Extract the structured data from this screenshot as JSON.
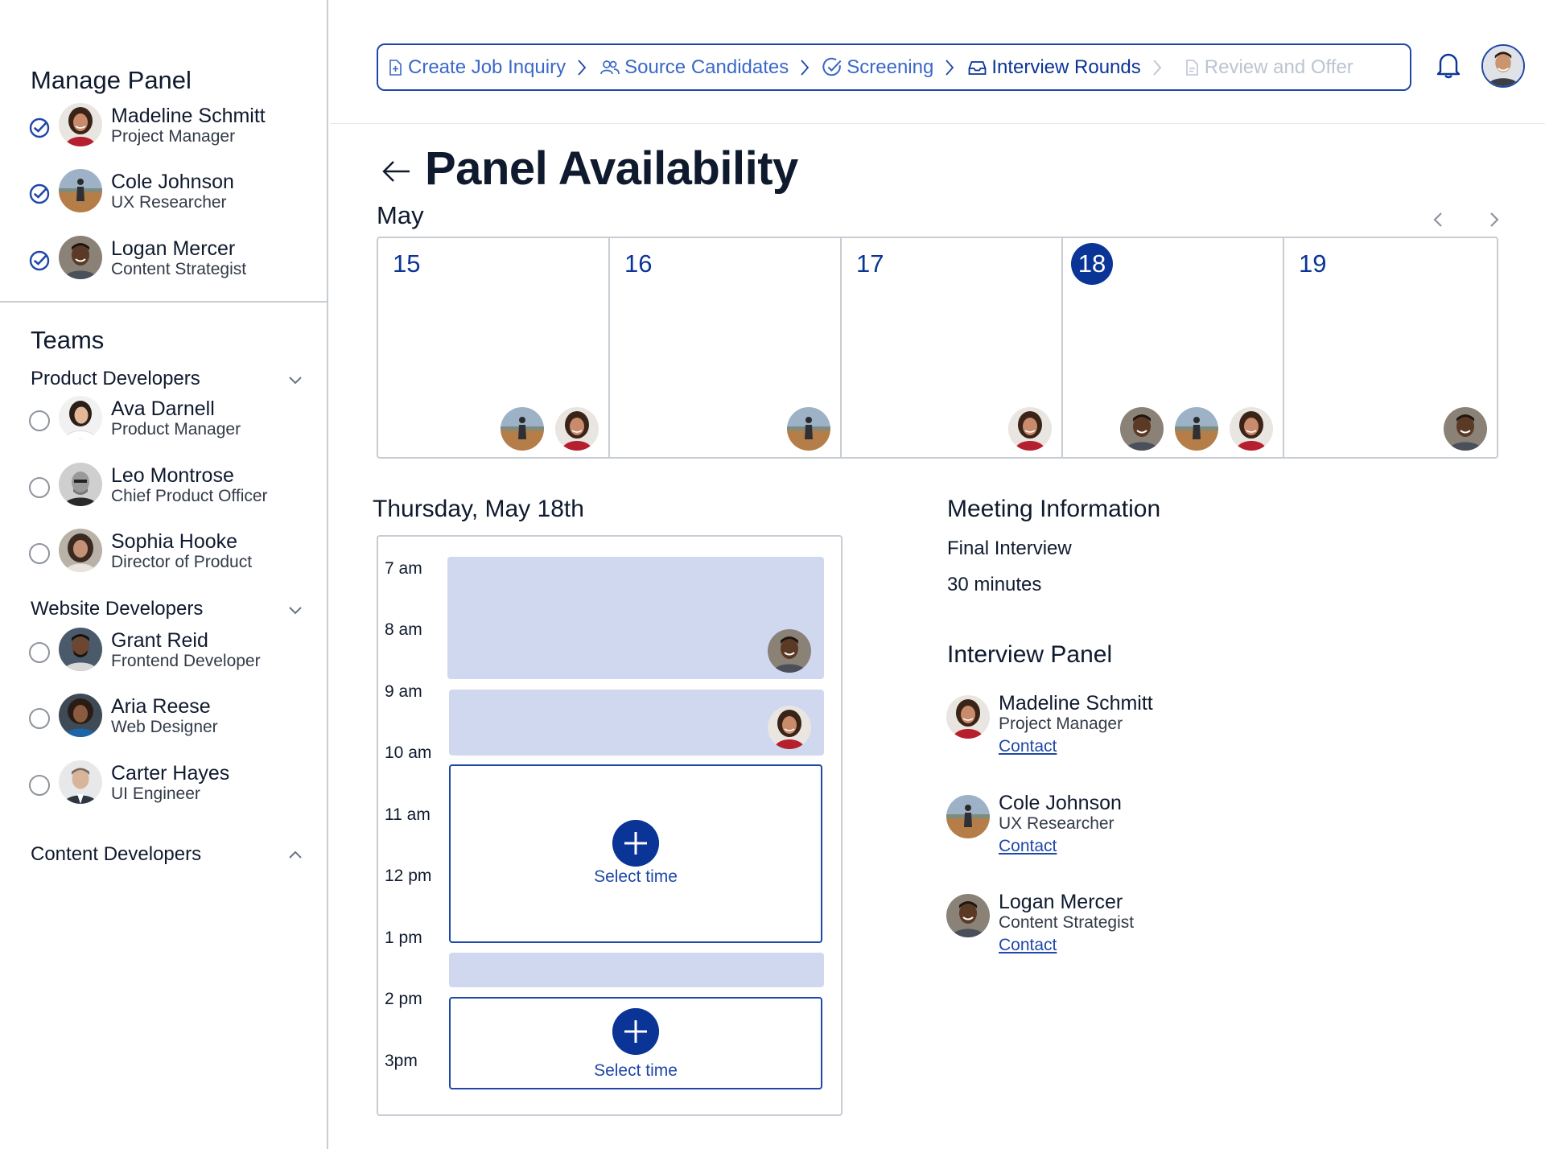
{
  "colors": {
    "primary": "#0a3597",
    "accent": "#1f47a8",
    "busy_block": "#cfd8ee",
    "border": "#c8ccd3"
  },
  "sidebar": {
    "manage_panel": {
      "title": "Manage Panel",
      "members": [
        {
          "name": "Madeline Schmitt",
          "role": "Project Manager",
          "selected": true,
          "avatar": "avatar-woman-red"
        },
        {
          "name": "Cole Johnson",
          "role": "UX Researcher",
          "selected": true,
          "avatar": "avatar-field"
        },
        {
          "name": "Logan Mercer",
          "role": "Content Strategist",
          "selected": true,
          "avatar": "avatar-man-dark"
        }
      ]
    },
    "teams": {
      "title": "Teams",
      "groups": [
        {
          "name": "Product Developers",
          "expanded": true,
          "members": [
            {
              "name": "Ava Darnell",
              "role": "Product Manager",
              "selected": false
            },
            {
              "name": "Leo Montrose",
              "role": "Chief Product Officer",
              "selected": false
            },
            {
              "name": "Sophia Hooke",
              "role": "Director of Product",
              "selected": false
            }
          ]
        },
        {
          "name": "Website Developers",
          "expanded": true,
          "members": [
            {
              "name": "Grant Reid",
              "role": "Frontend Developer",
              "selected": false
            },
            {
              "name": "Aria Reese",
              "role": "Web Designer",
              "selected": false
            },
            {
              "name": "Carter Hayes",
              "role": "UI Engineer",
              "selected": false
            }
          ]
        },
        {
          "name": "Content Developers",
          "expanded": false,
          "members": []
        }
      ]
    }
  },
  "steps": [
    {
      "label": "Create Job Inquiry",
      "icon": "file-plus-icon",
      "state": "done"
    },
    {
      "label": "Source Candidates",
      "icon": "users-icon",
      "state": "done"
    },
    {
      "label": "Screening",
      "icon": "check-circle-icon",
      "state": "done"
    },
    {
      "label": "Interview Rounds",
      "icon": "inbox-icon",
      "state": "active"
    },
    {
      "label": "Review and Offer",
      "icon": "file-icon",
      "state": "disabled"
    }
  ],
  "header": {
    "notifications_icon": "bell-icon"
  },
  "main": {
    "title": "Panel Availability",
    "month": "May",
    "days": [
      {
        "date": "15",
        "today": false,
        "avatars": [
          "avatar-field",
          "avatar-woman-red"
        ]
      },
      {
        "date": "16",
        "today": false,
        "avatars": [
          "avatar-field"
        ]
      },
      {
        "date": "17",
        "today": false,
        "avatars": [
          "avatar-woman-red"
        ]
      },
      {
        "date": "18",
        "today": true,
        "avatars": [
          "avatar-man-dark",
          "avatar-field",
          "avatar-woman-red"
        ]
      },
      {
        "date": "19",
        "today": false,
        "avatars": [
          "avatar-man-dark"
        ]
      }
    ],
    "selected_day": "Thursday, May 18th",
    "hours": [
      "7 am",
      "8 am",
      "9 am",
      "10 am",
      "11 am",
      "12 pm",
      "1 pm",
      "2 pm",
      "3pm"
    ],
    "select_time_label": "Select time"
  },
  "meeting": {
    "title": "Meeting Information",
    "name": "Final Interview",
    "duration": "30 minutes",
    "panel_title": "Interview Panel",
    "panel": [
      {
        "name": "Madeline Schmitt",
        "role": "Project Manager",
        "contact": "Contact"
      },
      {
        "name": "Cole Johnson",
        "role": "UX Researcher",
        "contact": "Contact"
      },
      {
        "name": "Logan Mercer",
        "role": "Content Strategist",
        "contact": "Contact"
      }
    ]
  }
}
